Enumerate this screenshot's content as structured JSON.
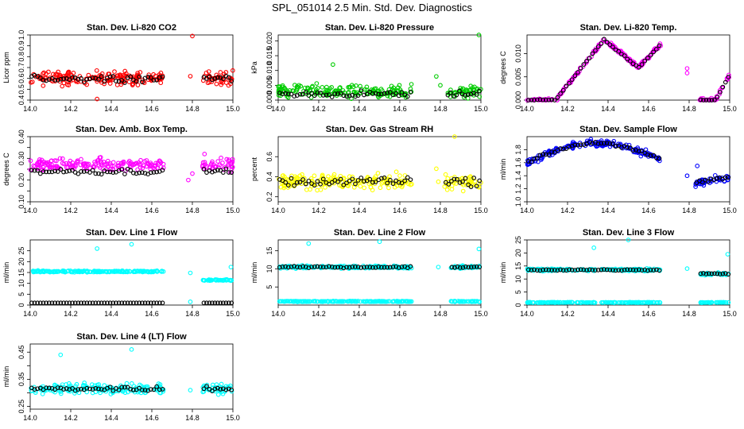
{
  "figure_title": "SPL_051014  2.5 Min. Std. Dev. Diagnostics",
  "chart_data": [
    {
      "type": "scatter",
      "title": "Stan. Dev. Li-820 CO2",
      "ylabel": "Licor ppm",
      "color": "#ff0000",
      "xlim": [
        14.0,
        15.0
      ],
      "ylim": [
        0.4,
        1.0
      ],
      "yticks": [
        0.4,
        0.5,
        0.6,
        0.7,
        0.8,
        0.9,
        1.0
      ],
      "ytick_labels": [
        "0.4",
        "0.5",
        "0.6",
        "0.7",
        "0.8",
        "0.9",
        "1.0"
      ],
      "xticks": [
        14.0,
        14.2,
        14.4,
        14.6,
        14.8,
        15.0
      ],
      "xtick_labels": [
        "14.0",
        "14.2",
        "14.4",
        "14.6",
        "14.8",
        "15.0"
      ],
      "series_summary": {
        "segments": [
          [
            14.0,
            14.66
          ],
          [
            14.85,
            15.0
          ]
        ],
        "base": 0.6,
        "spread": 0.09,
        "black_offset": 0.0,
        "outliers": [
          [
            14.8,
            0.99
          ],
          [
            14.33,
            0.41
          ],
          [
            14.79,
            0.62
          ]
        ]
      }
    },
    {
      "type": "scatter",
      "title": "Stan. Dev. Li-820 Pressure",
      "ylabel": "kPa",
      "color": "#00cc00",
      "xlim": [
        14.0,
        15.0
      ],
      "ylim": [
        0.0,
        0.022
      ],
      "yticks": [
        0.0,
        0.005,
        0.01,
        0.015,
        0.02
      ],
      "ytick_labels": [
        "0.000",
        "0.005",
        "0.010",
        "0.015",
        "0.020"
      ],
      "xticks": [
        14.0,
        14.2,
        14.4,
        14.6,
        14.8,
        15.0
      ],
      "xtick_labels": [
        "14.0",
        "14.2",
        "14.4",
        "14.6",
        "14.8",
        "15.0"
      ],
      "series_summary": {
        "segments": [
          [
            14.0,
            14.66
          ],
          [
            14.83,
            15.0
          ]
        ],
        "base": 0.003,
        "spread": 0.003,
        "black_offset": -0.001,
        "outliers": [
          [
            14.99,
            0.0235
          ],
          [
            14.27,
            0.012
          ],
          [
            14.78,
            0.008
          ],
          [
            14.8,
            0.005
          ]
        ]
      }
    },
    {
      "type": "scatter",
      "title": "Stan. Dev. Li-820 Temp.",
      "ylabel": "degrees C",
      "color": "#ff00ff",
      "xlim": [
        14.0,
        15.0
      ],
      "ylim": [
        0.0,
        0.014
      ],
      "yticks": [
        0.0,
        0.005,
        0.01
      ],
      "ytick_labels": [
        "0.000",
        "0.005",
        "0.010"
      ],
      "xticks": [
        14.0,
        14.2,
        14.4,
        14.6,
        14.8,
        15.0
      ],
      "xtick_labels": [
        "14.0",
        "14.2",
        "14.4",
        "14.6",
        "14.8",
        "15.0"
      ],
      "series_summary": {
        "segments": [
          [
            14.0,
            14.66
          ],
          [
            14.85,
            15.0
          ]
        ],
        "curve": "temp",
        "spread": 0.0006,
        "outliers": [
          [
            14.79,
            0.0068
          ],
          [
            14.79,
            0.0058
          ]
        ]
      }
    },
    {
      "type": "scatter",
      "title": "Stan. Dev. Amb. Box Temp.",
      "ylabel": "degrees C",
      "color": "#ff00ff",
      "xlim": [
        14.0,
        15.0
      ],
      "ylim": [
        0.1,
        0.4
      ],
      "yticks": [
        0.1,
        0.15,
        0.2,
        0.25,
        0.3,
        0.35,
        0.4
      ],
      "ytick_labels": [
        "0.10",
        "",
        "0.20",
        "",
        "0.30",
        "",
        "0.40"
      ],
      "xticks": [
        14.0,
        14.2,
        14.4,
        14.6,
        14.8,
        15.0
      ],
      "xtick_labels": [
        "14.0",
        "14.2",
        "14.4",
        "14.6",
        "14.8",
        "15.0"
      ],
      "series_summary": {
        "segments": [
          [
            14.0,
            14.66
          ],
          [
            14.85,
            15.0
          ]
        ],
        "base": 0.27,
        "spread": 0.04,
        "black_offset": -0.03,
        "outliers": [
          [
            14.78,
            0.2
          ],
          [
            14.8,
            0.23
          ],
          [
            14.86,
            0.32
          ]
        ]
      }
    },
    {
      "type": "scatter",
      "title": "Stan. Dev. Gas Stream RH",
      "ylabel": "percent",
      "color": "#ffff00",
      "xlim": [
        14.0,
        15.0
      ],
      "ylim": [
        0.15,
        0.8
      ],
      "yticks": [
        0.2,
        0.4,
        0.6
      ],
      "ytick_labels": [
        "0.2",
        "0.4",
        "0.6"
      ],
      "xticks": [
        14.0,
        14.2,
        14.4,
        14.6,
        14.8,
        15.0
      ],
      "xtick_labels": [
        "14.0",
        "14.2",
        "14.4",
        "14.6",
        "14.8",
        "15.0"
      ],
      "series_summary": {
        "segments": [
          [
            14.0,
            14.66
          ],
          [
            14.82,
            15.0
          ]
        ],
        "base": 0.35,
        "spread": 0.12,
        "black_offset": 0.0,
        "outliers": [
          [
            14.87,
            0.8
          ],
          [
            14.78,
            0.48
          ],
          [
            14.79,
            0.35
          ]
        ]
      }
    },
    {
      "type": "scatter",
      "title": "Stan. Dev. Sample Flow",
      "ylabel": "ml/min",
      "color": "#0000ff",
      "xlim": [
        14.0,
        15.0
      ],
      "ylim": [
        1.0,
        2.0
      ],
      "yticks": [
        1.0,
        1.2,
        1.4,
        1.6,
        1.8
      ],
      "ytick_labels": [
        "1.0",
        "1.2",
        "1.4",
        "1.6",
        "1.8"
      ],
      "xticks": [
        14.0,
        14.2,
        14.4,
        14.6,
        14.8,
        15.0
      ],
      "xtick_labels": [
        "14.0",
        "14.2",
        "14.4",
        "14.6",
        "14.8",
        "15.0"
      ],
      "series_summary": {
        "segments": [
          [
            14.0,
            14.66
          ],
          [
            14.83,
            15.0
          ]
        ],
        "curve": "flow",
        "spread": 0.08,
        "outliers": [
          [
            14.79,
            1.4
          ],
          [
            14.84,
            1.55
          ]
        ]
      }
    },
    {
      "type": "scatter",
      "title": "Stan. Dev. Line 1 Flow",
      "ylabel": "ml/min",
      "color": "#00ffff",
      "xlim": [
        14.0,
        15.0
      ],
      "ylim": [
        0,
        30
      ],
      "yticks": [
        0,
        5,
        10,
        15,
        20,
        25
      ],
      "ytick_labels": [
        "0",
        "5",
        "10",
        "15",
        "20",
        "25"
      ],
      "xticks": [
        14.0,
        14.2,
        14.4,
        14.6,
        14.8,
        15.0
      ],
      "xtick_labels": [
        "14.0",
        "14.2",
        "14.4",
        "14.6",
        "14.8",
        "15.0"
      ],
      "series_summary": {
        "segments": [
          [
            14.0,
            14.66
          ],
          [
            14.85,
            15.0
          ]
        ],
        "base": 15.5,
        "base2": 11.5,
        "spread": 0.5,
        "black_value": 1.0,
        "outliers": [
          [
            14.5,
            28
          ],
          [
            14.33,
            26
          ],
          [
            14.99,
            17.5
          ],
          [
            14.79,
            14.8
          ],
          [
            14.79,
            1.5
          ]
        ]
      }
    },
    {
      "type": "scatter",
      "title": "Stan. Dev. Line 2 Flow",
      "ylabel": "ml/min",
      "color": "#00ffff",
      "xlim": [
        14.0,
        15.0
      ],
      "ylim": [
        0,
        18
      ],
      "yticks": [
        5,
        10,
        15
      ],
      "ytick_labels": [
        "5",
        "10",
        "15"
      ],
      "xticks": [
        14.0,
        14.2,
        14.4,
        14.6,
        14.8,
        15.0
      ],
      "xtick_labels": [
        "14.0",
        "14.2",
        "14.4",
        "14.6",
        "14.8",
        "15.0"
      ],
      "series_summary": {
        "segments": [
          [
            14.0,
            14.66
          ],
          [
            14.85,
            15.0
          ]
        ],
        "base": 10.5,
        "spread": 0.6,
        "low_value": 1.0,
        "outliers": [
          [
            14.15,
            17
          ],
          [
            14.5,
            17.5
          ],
          [
            14.99,
            15.5
          ],
          [
            14.79,
            10.5
          ]
        ]
      }
    },
    {
      "type": "scatter",
      "title": "Stan. Dev. Line 3 Flow",
      "ylabel": "ml/min",
      "color": "#00ffff",
      "xlim": [
        14.0,
        15.0
      ],
      "ylim": [
        0,
        25
      ],
      "yticks": [
        0,
        5,
        10,
        15,
        20,
        25
      ],
      "ytick_labels": [
        "0",
        "5",
        "10",
        "15",
        "20",
        "25"
      ],
      "xticks": [
        14.0,
        14.2,
        14.4,
        14.6,
        14.8,
        15.0
      ],
      "xtick_labels": [
        "14.0",
        "14.2",
        "14.4",
        "14.6",
        "14.8",
        "15.0"
      ],
      "series_summary": {
        "segments": [
          [
            14.0,
            14.66
          ],
          [
            14.85,
            15.0
          ]
        ],
        "base": 13.5,
        "base2": 12.0,
        "spread": 0.7,
        "low_value": 1.0,
        "outliers": [
          [
            14.5,
            25
          ],
          [
            14.33,
            22
          ],
          [
            14.99,
            19.5
          ],
          [
            14.79,
            14
          ]
        ]
      }
    },
    {
      "type": "scatter",
      "title": "Stan. Dev. Line 4 (LT) Flow",
      "ylabel": "ml/min",
      "color": "#00ffff",
      "xlim": [
        14.0,
        15.0
      ],
      "ylim": [
        0.24,
        0.48
      ],
      "yticks": [
        0.25,
        0.3,
        0.35,
        0.4,
        0.45
      ],
      "ytick_labels": [
        "0.25",
        "",
        "0.35",
        "",
        "0.45"
      ],
      "xticks": [
        14.0,
        14.2,
        14.4,
        14.6,
        14.8,
        15.0
      ],
      "xtick_labels": [
        "14.0",
        "14.2",
        "14.4",
        "14.6",
        "14.8",
        "15.0"
      ],
      "series_summary": {
        "segments": [
          [
            14.0,
            14.66
          ],
          [
            14.85,
            15.0
          ]
        ],
        "base": 0.315,
        "spread": 0.025,
        "black_offset": 0.0,
        "outliers": [
          [
            14.5,
            0.46
          ],
          [
            14.15,
            0.44
          ],
          [
            14.79,
            0.31
          ]
        ]
      }
    }
  ]
}
